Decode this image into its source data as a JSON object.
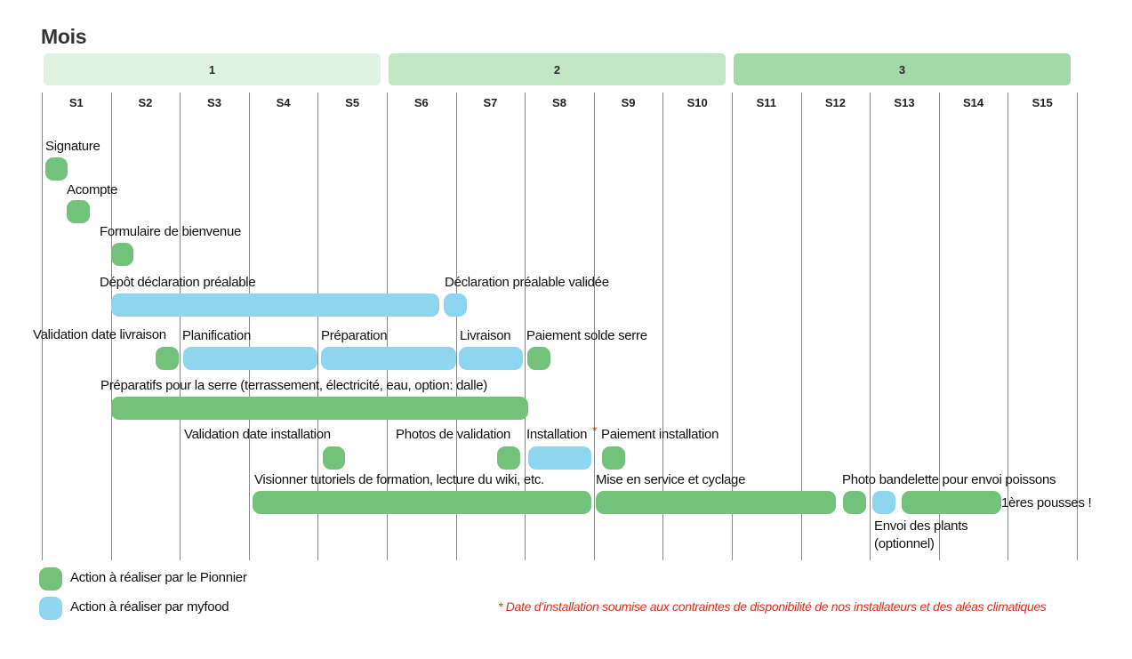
{
  "chart_data": {
    "type": "gantt",
    "title": "Mois",
    "months": [
      {
        "label": "1",
        "color": "#e0f2e1"
      },
      {
        "label": "2",
        "color": "#c3e6c5"
      },
      {
        "label": "3",
        "color": "#a3d9a8"
      }
    ],
    "weeks": [
      "S1",
      "S2",
      "S3",
      "S4",
      "S5",
      "S6",
      "S7",
      "S8",
      "S9",
      "S10",
      "S11",
      "S12",
      "S13",
      "S14",
      "S15"
    ],
    "legend": [
      {
        "key": "p",
        "label": "Action à réaliser par le Pionnier",
        "color": "#72c27c"
      },
      {
        "key": "m",
        "label": "Action à réaliser par myfood",
        "color": "#8ed6f0"
      }
    ],
    "tasks": [
      {
        "label": "Signature",
        "who": "p",
        "start": 0.05,
        "end": 0.38
      },
      {
        "label": "Acompte",
        "who": "p",
        "start": 0.36,
        "end": 0.69
      },
      {
        "label": "Formulaire de bienvenue",
        "who": "p",
        "start": 1.0,
        "end": 1.33
      },
      {
        "label": "Dépôt déclaration préalable",
        "who": "m",
        "start": 1.0,
        "end": 5.76
      },
      {
        "label": "Déclaration préalable validée",
        "who": "m",
        "start": 5.83,
        "end": 6.16
      },
      {
        "label": "Validation date livraison",
        "who": "p",
        "start": 1.65,
        "end": 1.98
      },
      {
        "label": "Planification",
        "who": "m",
        "start": 2.05,
        "end": 3.99
      },
      {
        "label": "Préparation",
        "who": "m",
        "start": 4.05,
        "end": 6.0
      },
      {
        "label": "Livraison",
        "who": "m",
        "start": 6.05,
        "end": 6.97
      },
      {
        "label": "Paiement solde serre",
        "who": "p",
        "start": 7.04,
        "end": 7.37
      },
      {
        "label": "Préparatifs pour la serre (terrassement, électricité, eau, option: dalle)",
        "who": "p",
        "start": 1.0,
        "end": 7.05
      },
      {
        "label": "Validation date installation",
        "who": "p",
        "start": 4.07,
        "end": 4.4
      },
      {
        "label": "Photos de validation",
        "who": "p",
        "start": 6.6,
        "end": 6.93
      },
      {
        "label": "Installation",
        "who": "m",
        "start": 7.05,
        "end": 7.96
      },
      {
        "label": "Paiement installation",
        "who": "p",
        "start": 8.12,
        "end": 8.45
      },
      {
        "label": "Visionner tutoriels de formation, lecture du wiki, etc.",
        "who": "p",
        "start": 3.05,
        "end": 7.96
      },
      {
        "label": "Mise en service et cyclage",
        "who": "p",
        "start": 8.03,
        "end": 11.51
      },
      {
        "label": "Photo bandelette pour envoi poissons",
        "who": "p",
        "start": 11.61,
        "end": 11.94
      },
      {
        "label": "Envoi des plants (optionnel)",
        "who": "m",
        "start": 12.04,
        "end": 12.37
      },
      {
        "label": "1ères pousses !",
        "who": "p",
        "start": 12.46,
        "end": 13.9
      }
    ]
  },
  "labels": {
    "signature": "Signature",
    "acompte": "Acompte",
    "formulaire": "Formulaire de bienvenue",
    "depot": "Dépôt déclaration préalable",
    "declaration_validee": "Déclaration préalable validée",
    "validation_livraison": "Validation date livraison",
    "planification": "Planification",
    "preparation": "Préparation",
    "livraison": "Livraison",
    "paiement_solde": "Paiement solde serre",
    "preparatifs": "Préparatifs pour la serre (terrassement, électricité, eau, option: dalle)",
    "validation_installation": "Validation date installation",
    "photos_validation": "Photos de validation",
    "installation": "Installation",
    "asterisk": "*",
    "paiement_installation": "Paiement installation",
    "tutoriels": "Visionner tutoriels de formation, lecture du wiki, etc.",
    "mise_en_service": "Mise en service et cyclage",
    "photo_bandelette": "Photo bandelette pour envoi poissons",
    "premieres_pousses": "1ères pousses !",
    "envoi_plants_1": "Envoi des plants",
    "envoi_plants_2": "(optionnel)"
  },
  "footnote": "* Date d’installation soumise aux contraintes de disponibilité de nos installateurs et des aléas climatiques"
}
